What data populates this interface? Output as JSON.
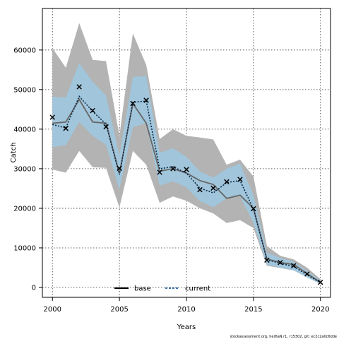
{
  "chart_data": {
    "type": "line",
    "xlabel": "Years",
    "ylabel": "Catch",
    "xlim": [
      1999.25,
      2020.75
    ],
    "ylim": [
      -2500,
      70500
    ],
    "xticks": [
      2000,
      2005,
      2010,
      2015,
      2020
    ],
    "yticks": [
      0,
      10000,
      20000,
      30000,
      40000,
      50000,
      60000
    ],
    "grid": true,
    "legend_position": "bottom-center",
    "legend": [
      {
        "name": "base",
        "style": "solid",
        "color": "#000000"
      },
      {
        "name": "current",
        "style": "dashed",
        "color": "#1f5f9f"
      }
    ],
    "x": [
      2000,
      2001,
      2002,
      2003,
      2004,
      2005,
      2006,
      2007,
      2008,
      2009,
      2010,
      2011,
      2012,
      2013,
      2014,
      2015,
      2016,
      2017,
      2018,
      2019,
      2020
    ],
    "observed": [
      43000,
      40200,
      50700,
      44700,
      40600,
      30100,
      46500,
      47300,
      29100,
      30000,
      29800,
      24700,
      25100,
      26700,
      27300,
      19900,
      6900,
      6300,
      5500,
      3400,
      1300
    ],
    "base": {
      "median": [
        41500,
        41800,
        47500,
        41800,
        41500,
        28800,
        46500,
        41500,
        29400,
        30000,
        28900,
        27000,
        26000,
        22500,
        23300,
        20000,
        7200,
        6300,
        5800,
        3500,
        1300
      ],
      "lower": [
        29800,
        29000,
        34500,
        30400,
        30200,
        20200,
        34500,
        31000,
        21400,
        23000,
        21900,
        20000,
        18700,
        16300,
        17000,
        15000,
        5500,
        4900,
        4300,
        2700,
        1000
      ],
      "upper": [
        60500,
        55500,
        66800,
        57500,
        57200,
        38300,
        64200,
        56200,
        37500,
        40000,
        38300,
        37900,
        37400,
        31000,
        32300,
        28000,
        10500,
        8000,
        7100,
        5000,
        2100
      ]
    },
    "current": {
      "median": [
        41200,
        40300,
        48300,
        44500,
        41300,
        28500,
        46800,
        47100,
        30000,
        30500,
        28900,
        25100,
        23900,
        26500,
        27000,
        19800,
        7000,
        6100,
        5300,
        3200,
        1200
      ],
      "lower": [
        35500,
        35900,
        41800,
        38300,
        36000,
        24800,
        40500,
        41500,
        25700,
        26800,
        25300,
        21800,
        20300,
        22500,
        23000,
        16300,
        5700,
        5000,
        4300,
        2500,
        900
      ],
      "upper": [
        48200,
        48000,
        56700,
        52000,
        48500,
        33400,
        53200,
        53400,
        34000,
        35200,
        33000,
        29300,
        27800,
        30000,
        31300,
        23300,
        8800,
        7500,
        6500,
        4200,
        1700
      ]
    }
  },
  "footnote": "stockassessment.org, her6aN r1, r15302, git: ec2c2a0c6dde"
}
